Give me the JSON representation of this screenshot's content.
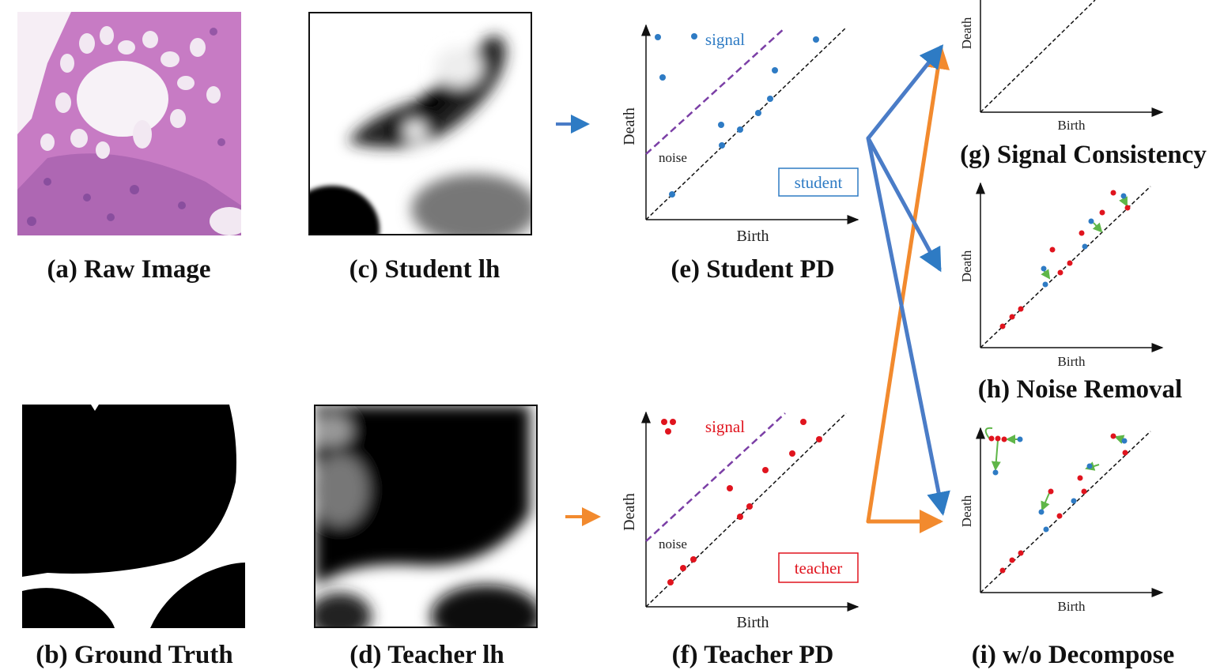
{
  "panels": {
    "raw_image": {
      "caption": "(a) Raw Image"
    },
    "ground_truth": {
      "caption": "(b) Ground Truth"
    },
    "student_lh": {
      "caption": "(c) Student lh"
    },
    "teacher_lh": {
      "caption": "(d) Teacher lh"
    },
    "student_pd": {
      "caption": "(e) Student PD",
      "x_label": "Birth",
      "y_label": "Death",
      "signal_label": "signal",
      "noise_label": "noise",
      "tag": "student"
    },
    "teacher_pd": {
      "caption": "(f) Teacher PD",
      "x_label": "Birth",
      "y_label": "Death",
      "signal_label": "signal",
      "noise_label": "noise",
      "tag": "teacher"
    },
    "signal_consistency": {
      "caption": "(g) Signal Consistency",
      "x_label": "Birth",
      "y_label": "Death"
    },
    "noise_removal": {
      "caption": "(h) Noise Removal",
      "x_label": "Birth",
      "y_label": "Death"
    },
    "wo_decompose": {
      "caption": "(i) w/o Decompose",
      "x_label": "Birth",
      "y_label": "Death"
    }
  }
}
